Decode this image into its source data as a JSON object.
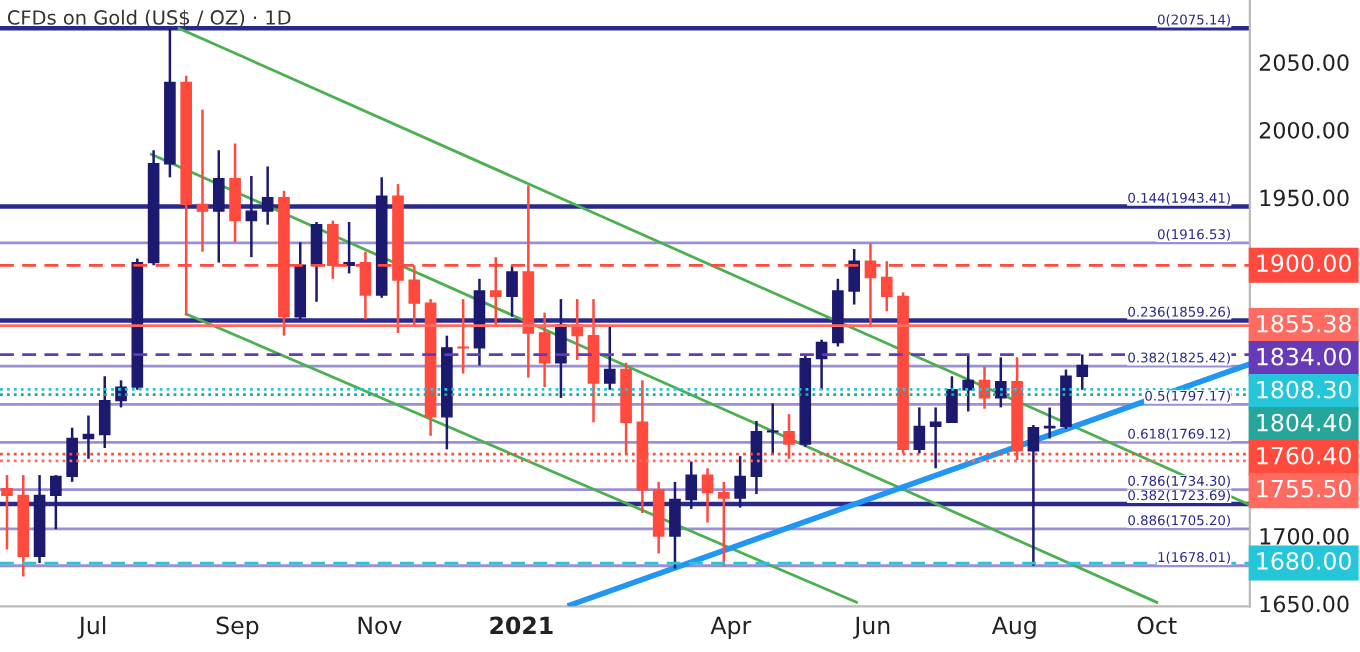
{
  "chart_data": {
    "type": "candlestick",
    "title": "CFDs on Gold (US$ / OZ) · 1D",
    "x": [
      "2020-05-25",
      "2020-06-01",
      "2020-06-08",
      "2020-06-15",
      "2020-06-22",
      "2020-06-29",
      "2020-07-06",
      "2020-07-13",
      "2020-07-20",
      "2020-07-27",
      "2020-08-03",
      "2020-08-10",
      "2020-08-17",
      "2020-08-24",
      "2020-08-31",
      "2020-09-07",
      "2020-09-14",
      "2020-09-21",
      "2020-09-28",
      "2020-10-05",
      "2020-10-12",
      "2020-10-19",
      "2020-10-26",
      "2020-11-02",
      "2020-11-09",
      "2020-11-16",
      "2020-11-23",
      "2020-11-30",
      "2020-12-07",
      "2020-12-14",
      "2020-12-21",
      "2020-12-28",
      "2021-01-04",
      "2021-01-11",
      "2021-01-18",
      "2021-01-25",
      "2021-02-01",
      "2021-02-08",
      "2021-02-15",
      "2021-02-22",
      "2021-03-01",
      "2021-03-08",
      "2021-03-15",
      "2021-03-22",
      "2021-03-29",
      "2021-04-05",
      "2021-04-12",
      "2021-04-19",
      "2021-04-26",
      "2021-05-03",
      "2021-05-10",
      "2021-05-17",
      "2021-05-24",
      "2021-05-31",
      "2021-06-07",
      "2021-06-14",
      "2021-06-21",
      "2021-06-28",
      "2021-07-05",
      "2021-07-12",
      "2021-07-19",
      "2021-07-26",
      "2021-08-02",
      "2021-08-09",
      "2021-08-16",
      "2021-08-23",
      "2021-08-30"
    ],
    "ohlc": [
      [
        1735,
        1745,
        1690,
        1730
      ],
      [
        1730,
        1745,
        1670,
        1685
      ],
      [
        1685,
        1745,
        1680,
        1730
      ],
      [
        1730,
        1745,
        1705,
        1744
      ],
      [
        1744,
        1780,
        1740,
        1772
      ],
      [
        1772,
        1789,
        1757,
        1775
      ],
      [
        1775,
        1818,
        1765,
        1800
      ],
      [
        1800,
        1815,
        1795,
        1810
      ],
      [
        1810,
        1905,
        1808,
        1902
      ],
      [
        1902,
        1985,
        1900,
        1975
      ],
      [
        1975,
        2075,
        1965,
        2035
      ],
      [
        2035,
        2040,
        1863,
        1945
      ],
      [
        1945,
        2015,
        1910,
        1940
      ],
      [
        1940,
        1985,
        1902,
        1964
      ],
      [
        1964,
        1990,
        1917,
        1933
      ],
      [
        1933,
        1966,
        1906,
        1940
      ],
      [
        1940,
        1973,
        1930,
        1950
      ],
      [
        1950,
        1955,
        1848,
        1862
      ],
      [
        1862,
        1917,
        1860,
        1900
      ],
      [
        1900,
        1932,
        1873,
        1930
      ],
      [
        1930,
        1933,
        1890,
        1900
      ],
      [
        1900,
        1932,
        1894,
        1902
      ],
      [
        1902,
        1910,
        1860,
        1878
      ],
      [
        1878,
        1965,
        1876,
        1951
      ],
      [
        1951,
        1960,
        1850,
        1889
      ],
      [
        1889,
        1900,
        1855,
        1872
      ],
      [
        1872,
        1875,
        1774,
        1788
      ],
      [
        1788,
        1848,
        1764,
        1839
      ],
      [
        1839,
        1875,
        1820,
        1839
      ],
      [
        1839,
        1890,
        1826,
        1881
      ],
      [
        1881,
        1906,
        1855,
        1877
      ],
      [
        1877,
        1900,
        1862,
        1895
      ],
      [
        1895,
        1959,
        1817,
        1850
      ],
      [
        1850,
        1865,
        1810,
        1828
      ],
      [
        1828,
        1875,
        1802,
        1856
      ],
      [
        1856,
        1875,
        1830,
        1848
      ],
      [
        1848,
        1875,
        1784,
        1813
      ],
      [
        1813,
        1855,
        1808,
        1823
      ],
      [
        1823,
        1828,
        1760,
        1784
      ],
      [
        1784,
        1815,
        1717,
        1734
      ],
      [
        1734,
        1740,
        1687,
        1700
      ],
      [
        1700,
        1740,
        1676,
        1727
      ],
      [
        1727,
        1755,
        1720,
        1745
      ],
      [
        1745,
        1750,
        1710,
        1732
      ],
      [
        1732,
        1740,
        1678,
        1728
      ],
      [
        1728,
        1759,
        1721,
        1744
      ],
      [
        1744,
        1785,
        1731,
        1777
      ],
      [
        1777,
        1798,
        1760,
        1777
      ],
      [
        1777,
        1790,
        1757,
        1768
      ],
      [
        1768,
        1834,
        1766,
        1831
      ],
      [
        1831,
        1845,
        1808,
        1843
      ],
      [
        1843,
        1890,
        1840,
        1881
      ],
      [
        1881,
        1912,
        1871,
        1903
      ],
      [
        1903,
        1916,
        1855,
        1891
      ],
      [
        1891,
        1903,
        1866,
        1877
      ],
      [
        1877,
        1880,
        1761,
        1764
      ],
      [
        1764,
        1795,
        1761,
        1781
      ],
      [
        1781,
        1795,
        1750,
        1784
      ],
      [
        1784,
        1818,
        1784,
        1808
      ],
      [
        1808,
        1834,
        1792,
        1815
      ],
      [
        1815,
        1825,
        1794,
        1802
      ],
      [
        1802,
        1832,
        1795,
        1814
      ],
      [
        1814,
        1832,
        1756,
        1763
      ],
      [
        1763,
        1782,
        1678,
        1780
      ],
      [
        1780,
        1795,
        1772,
        1781
      ],
      [
        1781,
        1823,
        1779,
        1818
      ],
      [
        1818,
        1834,
        1808,
        1826
      ]
    ],
    "colors": [
      "#ff4a3d",
      "#ff4a3d",
      "#1c1a6e",
      "#1c1a6e",
      "#1c1a6e",
      "#1c1a6e",
      "#1c1a6e",
      "#1c1a6e",
      "#1c1a6e",
      "#1c1a6e",
      "#1c1a6e",
      "#ff4a3d",
      "#ff4a3d",
      "#1c1a6e",
      "#ff4a3d",
      "#1c1a6e",
      "#1c1a6e",
      "#ff4a3d",
      "#1c1a6e",
      "#1c1a6e",
      "#ff4a3d",
      "#1c1a6e",
      "#ff4a3d",
      "#1c1a6e",
      "#ff4a3d",
      "#ff4a3d",
      "#ff4a3d",
      "#1c1a6e",
      "#ff4a3d",
      "#1c1a6e",
      "#ff4a3d",
      "#1c1a6e",
      "#ff4a3d",
      "#ff4a3d",
      "#1c1a6e",
      "#ff4a3d",
      "#ff4a3d",
      "#1c1a6e",
      "#ff4a3d",
      "#ff4a3d",
      "#ff4a3d",
      "#1c1a6e",
      "#1c1a6e",
      "#ff4a3d",
      "#ff4a3d",
      "#1c1a6e",
      "#1c1a6e",
      "#1c1a6e",
      "#ff4a3d",
      "#1c1a6e",
      "#1c1a6e",
      "#1c1a6e",
      "#1c1a6e",
      "#ff4a3d",
      "#ff4a3d",
      "#ff4a3d",
      "#1c1a6e",
      "#1c1a6e",
      "#1c1a6e",
      "#1c1a6e",
      "#ff4a3d",
      "#1c1a6e",
      "#ff4a3d",
      "#1c1a6e",
      "#1c1a6e",
      "#1c1a6e",
      "#1c1a6e"
    ],
    "series": [
      {
        "type": "line",
        "color": "#4caf50",
        "x": [
          "2020-08-07",
          "2021-11-10"
        ],
        "values": [
          2075,
          1723
        ]
      },
      {
        "type": "line",
        "color": "#4caf50",
        "x": [
          "2020-07-26",
          "2021-10-01"
        ],
        "values": [
          1982,
          1651
        ]
      },
      {
        "type": "line",
        "color": "#4caf50",
        "x": [
          "2020-08-10",
          "2021-05-25"
        ],
        "values": [
          1864,
          1651
        ]
      },
      {
        "type": "line",
        "color": "#2196f3",
        "x": [
          "2021-01-22",
          "2021-11-10"
        ],
        "values": [
          1649,
          1827
        ]
      }
    ],
    "ref_lines": [
      {
        "axis": "y",
        "value": 2075.14,
        "label": "0(2075.14)",
        "color": "#2a2a8c",
        "line_style": "solid"
      },
      {
        "axis": "y",
        "value": 1943.41,
        "label": "0.144(1943.41)",
        "color": "#2a2a8c",
        "line_style": "solid"
      },
      {
        "axis": "y",
        "value": 1916.53,
        "label": "0(1916.53)",
        "color": "#9c8fd6",
        "line_style": "solid"
      },
      {
        "axis": "y2",
        "value": 1900,
        "label": "1900.00",
        "color": "#ff4a3d",
        "line_style": "dashed"
      },
      {
        "axis": "y",
        "value": 1859.26,
        "label": "0.236(1859.26)",
        "color": "#2a2a8c",
        "line_style": "solid"
      },
      {
        "axis": "y2",
        "value": 1855.38,
        "label": "1855.38",
        "color": "#ff6b61",
        "line_style": "solid"
      },
      {
        "axis": "y2",
        "value": 1834,
        "label": "1834.00",
        "color": "#673ab7",
        "line_style": "dashed"
      },
      {
        "axis": "y",
        "value": 1825.42,
        "label": "0.382(1825.42)",
        "color": "#9c8fd6",
        "line_style": "solid"
      },
      {
        "axis": "y2",
        "value": 1808.3,
        "label": "1808.30",
        "color": "#26c6da",
        "line_style": "dotted"
      },
      {
        "axis": "y2",
        "value": 1804.4,
        "label": "1804.40",
        "color": "#26a69a",
        "line_style": "dotted"
      },
      {
        "axis": "y",
        "value": 1797.17,
        "label": "0.5(1797.17)",
        "color": "#9c8fd6",
        "line_style": "solid"
      },
      {
        "axis": "y",
        "value": 1769.12,
        "label": "0.618(1769.12)",
        "color": "#9c8fd6",
        "line_style": "solid"
      },
      {
        "axis": "y2",
        "value": 1760.4,
        "label": "1760.40",
        "color": "#ff4a3d",
        "line_style": "dotted"
      },
      {
        "axis": "y2",
        "value": 1755.5,
        "label": "1755.50",
        "color": "#ff6b61",
        "line_style": "dotted"
      },
      {
        "axis": "y",
        "value": 1734.3,
        "label": "0.786(1734.30)",
        "color": "#9c8fd6",
        "line_style": "solid"
      },
      {
        "axis": "y",
        "value": 1723.69,
        "label": "0.382(1723.69)",
        "color": "#2a2a8c",
        "line_style": "solid"
      },
      {
        "axis": "y",
        "value": 1705.2,
        "label": "0.886(1705.20)",
        "color": "#9c8fd6",
        "line_style": "solid"
      },
      {
        "axis": "y",
        "value": 1678.01,
        "label": "1(1678.01)",
        "color": "#9c8fd6",
        "line_style": "solid"
      },
      {
        "axis": "y2",
        "value": 1680,
        "label": "1680.00",
        "color": "#26c6da",
        "line_style": "dashed"
      }
    ],
    "xlim": [
      "2020-05-22",
      "2021-11-10"
    ],
    "xticks": [
      {
        "value": "2020-07-01",
        "label": "Jul"
      },
      {
        "value": "2020-09-01",
        "label": "Sep"
      },
      {
        "value": "2020-11-01",
        "label": "Nov"
      },
      {
        "value": "2021-01-01",
        "label": "2021"
      },
      {
        "value": "2021-04-01",
        "label": "Apr"
      },
      {
        "value": "2021-06-01",
        "label": "Jun"
      },
      {
        "value": "2021-08-01",
        "label": "Aug"
      },
      {
        "value": "2021-10-01",
        "label": "Oct"
      }
    ],
    "ylim": [
      1648,
      2096
    ],
    "yticks": [
      {
        "value": 1650,
        "label": "1650.00"
      },
      {
        "value": 1700,
        "label": "1700.00"
      },
      {
        "value": 1950,
        "label": "1950.00"
      },
      {
        "value": 2000,
        "label": "2000.00"
      },
      {
        "value": 2050,
        "label": "2050.00"
      }
    ],
    "y2lim": [
      1648,
      2096
    ],
    "grid": false
  }
}
